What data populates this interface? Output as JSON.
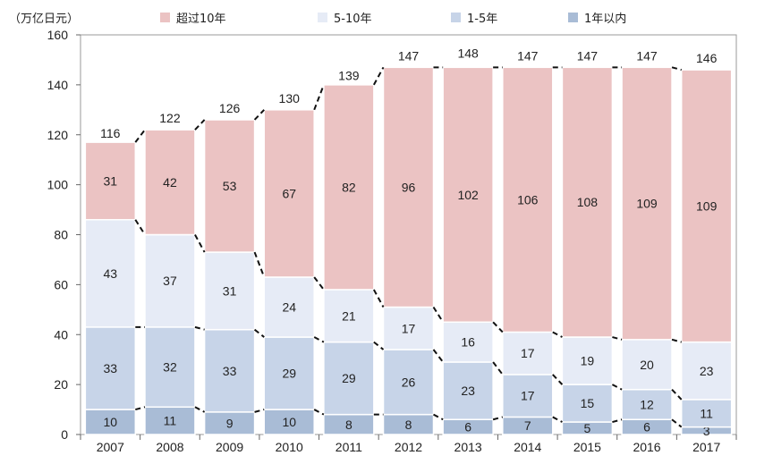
{
  "chart_data": {
    "type": "bar",
    "stacked": true,
    "unit_label": "（万亿日元）",
    "categories": [
      "2007",
      "2008",
      "2009",
      "2010",
      "2011",
      "2012",
      "2013",
      "2014",
      "2015",
      "2016",
      "2017"
    ],
    "series": [
      {
        "name": "1年以内",
        "color": "#a9bcd6",
        "values": [
          10,
          11,
          9,
          10,
          8,
          8,
          6,
          7,
          5,
          6,
          3
        ]
      },
      {
        "name": "1-5年",
        "color": "#c7d4e8",
        "values": [
          33,
          32,
          33,
          29,
          29,
          26,
          23,
          17,
          15,
          12,
          11
        ]
      },
      {
        "name": "5-10年",
        "color": "#e6ebf6",
        "values": [
          43,
          37,
          31,
          24,
          21,
          17,
          16,
          17,
          19,
          20,
          23
        ]
      },
      {
        "name": "超过10年",
        "color": "#ebc3c3",
        "values": [
          31,
          42,
          53,
          67,
          82,
          96,
          102,
          106,
          108,
          109,
          109
        ]
      }
    ],
    "totals": [
      116,
      122,
      126,
      130,
      139,
      147,
      148,
      147,
      147,
      147,
      146
    ],
    "legend_order": [
      "超过10年",
      "5-10年",
      "1-5年",
      "1年以内"
    ],
    "ylim": [
      0,
      160
    ],
    "yticks": [
      0,
      20,
      40,
      60,
      80,
      100,
      120,
      140,
      160
    ],
    "grid": false,
    "legend_position": "top"
  }
}
